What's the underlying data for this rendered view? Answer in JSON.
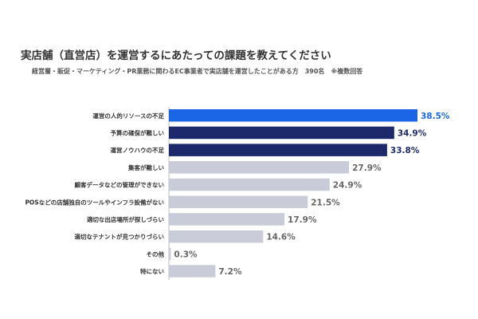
{
  "chart_data": {
    "type": "bar",
    "orientation": "horizontal",
    "title": "実店舗（直営店）を運営するにあたっての課題を教えてください",
    "subtitle": "経営層・販促・マーケティング・PR業務に関わるEC事業者で実店舗を運営したことがある方　390名　※複数回答",
    "categories": [
      "運営の人的リソースの不足",
      "予算の確保が難しい",
      "運営ノウハウの不足",
      "集客が難しい",
      "顧客データなどの管理ができない",
      "POSなどの店舗独自のツールやインフラ設備がない",
      "適切な出店場所が探しづらい",
      "適切なテナントが見つかりづらい",
      "その他",
      "特にない"
    ],
    "values": [
      38.5,
      34.9,
      33.8,
      27.9,
      24.9,
      21.5,
      17.9,
      14.6,
      0.3,
      7.2
    ],
    "value_labels": [
      "38.5%",
      "34.9%",
      "33.8%",
      "27.9%",
      "24.9%",
      "21.5%",
      "17.9%",
      "14.6%",
      "0.3%",
      "7.2%"
    ],
    "bar_colors": [
      "#1a66e6",
      "#1c2a6b",
      "#1c2a6b",
      "#c9ccd8",
      "#c9ccd8",
      "#c9ccd8",
      "#c9ccd8",
      "#c9ccd8",
      "#c9ccd8",
      "#c9ccd8"
    ],
    "label_colors": [
      "#1a66e6",
      "#1c2a6b",
      "#1c2a6b",
      "#666666",
      "#666666",
      "#666666",
      "#666666",
      "#666666",
      "#666666",
      "#666666"
    ],
    "xlim": [
      0,
      38.5
    ],
    "grid": false,
    "legend": "none"
  }
}
